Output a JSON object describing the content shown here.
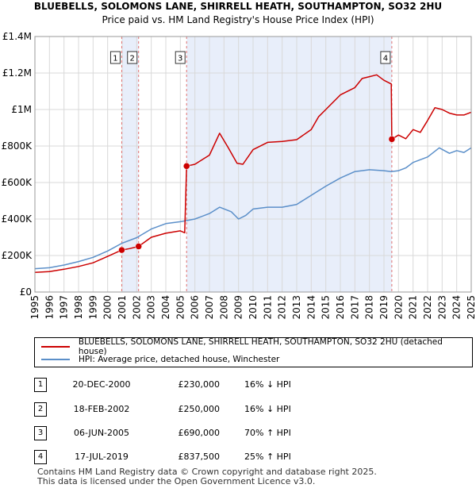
{
  "chart_data": {
    "type": "line",
    "title": "BLUEBELLS, SOLOMONS LANE, SHIRRELL HEATH, SOUTHAMPTON, SO32 2HU",
    "subtitle": "Price paid vs. HM Land Registry's House Price Index (HPI)",
    "xlabel": "",
    "ylabel": "",
    "xlim": [
      1995,
      2025
    ],
    "ylim": [
      0,
      1400000
    ],
    "grid": true,
    "y_ticks": [
      {
        "value": 0,
        "label": "£0"
      },
      {
        "value": 200000,
        "label": "£200K"
      },
      {
        "value": 400000,
        "label": "£400K"
      },
      {
        "value": 600000,
        "label": "£600K"
      },
      {
        "value": 800000,
        "label": "£800K"
      },
      {
        "value": 1000000,
        "label": "£1M"
      },
      {
        "value": 1200000,
        "label": "£1.2M"
      },
      {
        "value": 1400000,
        "label": "£1.4M"
      }
    ],
    "x_ticks": [
      "1995",
      "1996",
      "1997",
      "1998",
      "1999",
      "2000",
      "2001",
      "2002",
      "2003",
      "2004",
      "2005",
      "2006",
      "2007",
      "2008",
      "2009",
      "2010",
      "2011",
      "2012",
      "2013",
      "2014",
      "2015",
      "2016",
      "2017",
      "2018",
      "2019",
      "2020",
      "2021",
      "2022",
      "2023",
      "2024",
      "2025"
    ],
    "shaded_ranges": [
      [
        2000.97,
        2002.13
      ],
      [
        2005.43,
        2019.54
      ]
    ],
    "series": [
      {
        "name": "BLUEBELLS, SOLOMONS LANE, SHIRRELL HEATH, SOUTHAMPTON, SO32 2HU (detached house)",
        "color": "#cc0000",
        "points": [
          [
            1995.0,
            108000
          ],
          [
            1996.0,
            112000
          ],
          [
            1997.0,
            125000
          ],
          [
            1998.0,
            140000
          ],
          [
            1999.0,
            160000
          ],
          [
            2000.0,
            195000
          ],
          [
            2000.97,
            230000
          ],
          [
            2001.5,
            238000
          ],
          [
            2002.13,
            250000
          ],
          [
            2003.0,
            300000
          ],
          [
            2004.0,
            322000
          ],
          [
            2005.0,
            335000
          ],
          [
            2005.3,
            325000
          ],
          [
            2005.43,
            690000
          ],
          [
            2006.0,
            700000
          ],
          [
            2007.0,
            750000
          ],
          [
            2007.7,
            870000
          ],
          [
            2008.3,
            790000
          ],
          [
            2008.9,
            705000
          ],
          [
            2009.3,
            700000
          ],
          [
            2010.0,
            780000
          ],
          [
            2011.0,
            820000
          ],
          [
            2012.0,
            825000
          ],
          [
            2013.0,
            835000
          ],
          [
            2014.0,
            890000
          ],
          [
            2014.5,
            960000
          ],
          [
            2015.0,
            1000000
          ],
          [
            2016.0,
            1080000
          ],
          [
            2017.0,
            1120000
          ],
          [
            2017.5,
            1170000
          ],
          [
            2018.0,
            1180000
          ],
          [
            2018.5,
            1190000
          ],
          [
            2019.0,
            1160000
          ],
          [
            2019.5,
            1140000
          ],
          [
            2019.54,
            837500
          ],
          [
            2020.0,
            860000
          ],
          [
            2020.5,
            840000
          ],
          [
            2021.0,
            890000
          ],
          [
            2021.5,
            875000
          ],
          [
            2022.0,
            940000
          ],
          [
            2022.5,
            1010000
          ],
          [
            2023.0,
            1000000
          ],
          [
            2023.5,
            980000
          ],
          [
            2024.0,
            970000
          ],
          [
            2024.5,
            970000
          ],
          [
            2025.0,
            985000
          ]
        ]
      },
      {
        "name": "HPI: Average price, detached house, Winchester",
        "color": "#5b8fc9",
        "points": [
          [
            1995.0,
            128000
          ],
          [
            1996.0,
            133000
          ],
          [
            1997.0,
            148000
          ],
          [
            1998.0,
            167000
          ],
          [
            1999.0,
            190000
          ],
          [
            2000.0,
            225000
          ],
          [
            2001.0,
            268000
          ],
          [
            2002.0,
            298000
          ],
          [
            2003.0,
            345000
          ],
          [
            2004.0,
            375000
          ],
          [
            2005.0,
            385000
          ],
          [
            2006.0,
            400000
          ],
          [
            2007.0,
            430000
          ],
          [
            2007.7,
            465000
          ],
          [
            2008.5,
            440000
          ],
          [
            2009.0,
            400000
          ],
          [
            2009.5,
            420000
          ],
          [
            2010.0,
            455000
          ],
          [
            2011.0,
            465000
          ],
          [
            2012.0,
            465000
          ],
          [
            2013.0,
            480000
          ],
          [
            2014.0,
            530000
          ],
          [
            2015.0,
            580000
          ],
          [
            2016.0,
            625000
          ],
          [
            2017.0,
            660000
          ],
          [
            2018.0,
            670000
          ],
          [
            2019.0,
            665000
          ],
          [
            2019.5,
            660000
          ],
          [
            2020.0,
            665000
          ],
          [
            2020.5,
            680000
          ],
          [
            2021.0,
            710000
          ],
          [
            2022.0,
            740000
          ],
          [
            2022.8,
            790000
          ],
          [
            2023.5,
            760000
          ],
          [
            2024.0,
            775000
          ],
          [
            2024.5,
            765000
          ],
          [
            2025.0,
            790000
          ]
        ]
      }
    ],
    "sales_markers": [
      {
        "label": "1",
        "x": 2000.97,
        "y": 230000
      },
      {
        "label": "2",
        "x": 2002.13,
        "y": 250000
      },
      {
        "label": "3",
        "x": 2005.43,
        "y": 690000
      },
      {
        "label": "4",
        "x": 2019.54,
        "y": 837500
      }
    ]
  },
  "legend": {
    "property": "BLUEBELLS, SOLOMONS LANE, SHIRRELL HEATH, SOUTHAMPTON, SO32 2HU (detached house)",
    "hpi": "HPI: Average price, detached house, Winchester"
  },
  "sales": [
    {
      "num": "1",
      "date": "20-DEC-2000",
      "price": "£230,000",
      "hpi": "16% ↓ HPI"
    },
    {
      "num": "2",
      "date": "18-FEB-2002",
      "price": "£250,000",
      "hpi": "16% ↓ HPI"
    },
    {
      "num": "3",
      "date": "06-JUN-2005",
      "price": "£690,000",
      "hpi": "70% ↑ HPI"
    },
    {
      "num": "4",
      "date": "17-JUL-2019",
      "price": "£837,500",
      "hpi": "25% ↑ HPI"
    }
  ],
  "footer": {
    "line1": "Contains HM Land Registry data © Crown copyright and database right 2025.",
    "line2": "This data is licensed under the Open Government Licence v3.0."
  }
}
